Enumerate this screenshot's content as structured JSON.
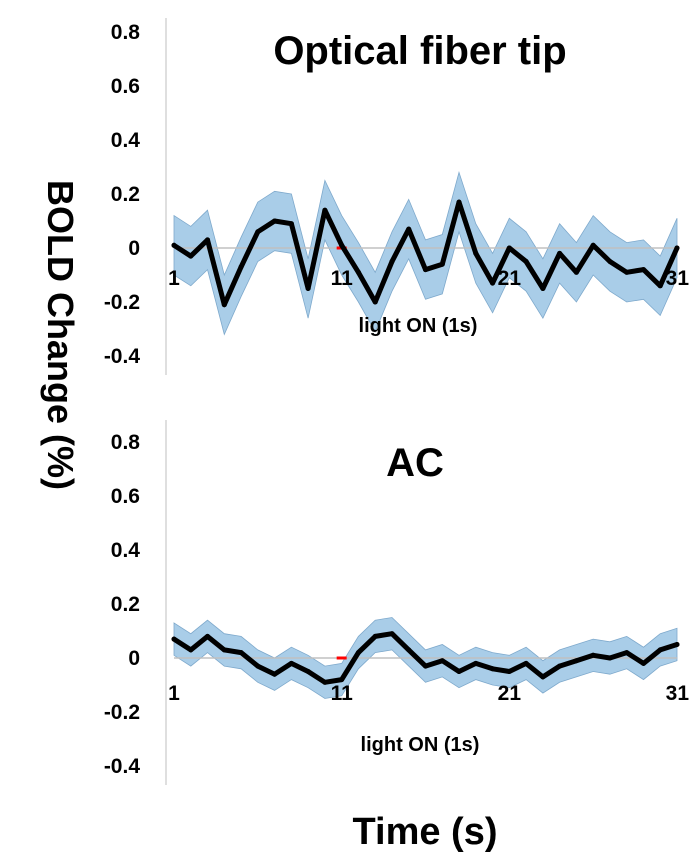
{
  "figure": {
    "ylabel": "BOLD Change (%)",
    "xlabel": "Time (s)"
  },
  "colors": {
    "line": "#000000",
    "band": "#a9cde8",
    "band_edge": "#7ea9cc",
    "zero_line": "#c0c0c0",
    "stimulus": "#ff0000",
    "axis": "#bfbfbf"
  },
  "chart_data": [
    {
      "type": "line",
      "title": "Optical fiber tip",
      "annotation": "light ON (1s)",
      "x": [
        1,
        2,
        3,
        4,
        5,
        6,
        7,
        8,
        9,
        10,
        11,
        12,
        13,
        14,
        15,
        16,
        17,
        18,
        19,
        20,
        21,
        22,
        23,
        24,
        25,
        26,
        27,
        28,
        29,
        30,
        31
      ],
      "series": [
        {
          "values": [
            0.01,
            -0.03,
            0.03,
            -0.21,
            -0.07,
            0.06,
            0.1,
            0.09,
            -0.15,
            0.14,
            0.01,
            -0.09,
            -0.2,
            -0.05,
            0.07,
            -0.08,
            -0.06,
            0.17,
            -0.02,
            -0.13,
            0.0,
            -0.05,
            -0.15,
            -0.02,
            -0.09,
            0.01,
            -0.05,
            -0.09,
            -0.08,
            -0.14,
            0.0
          ],
          "error": 0.11
        }
      ],
      "xticks": [
        "1",
        "11",
        "21",
        "31"
      ],
      "yticks": [
        "-0.4",
        "-0.2",
        "0",
        "0.2",
        "0.4",
        "0.6",
        "0.8"
      ],
      "xlim": [
        1,
        31
      ],
      "ylim": [
        -0.45,
        0.85
      ],
      "stimulus_x": 11,
      "grid": false
    },
    {
      "type": "line",
      "title": "AC",
      "annotation": "light ON (1s)",
      "x": [
        1,
        2,
        3,
        4,
        5,
        6,
        7,
        8,
        9,
        10,
        11,
        12,
        13,
        14,
        15,
        16,
        17,
        18,
        19,
        20,
        21,
        22,
        23,
        24,
        25,
        26,
        27,
        28,
        29,
        30,
        31
      ],
      "series": [
        {
          "values": [
            0.07,
            0.03,
            0.08,
            0.03,
            0.02,
            -0.03,
            -0.06,
            -0.02,
            -0.05,
            -0.09,
            -0.08,
            0.02,
            0.08,
            0.09,
            0.03,
            -0.03,
            -0.01,
            -0.05,
            -0.02,
            -0.04,
            -0.05,
            -0.02,
            -0.07,
            -0.03,
            -0.01,
            0.01,
            0.0,
            0.02,
            -0.02,
            0.03,
            0.05
          ],
          "error": 0.06
        }
      ],
      "xticks": [
        "1",
        "11",
        "21",
        "31"
      ],
      "yticks": [
        "-0.4",
        "-0.2",
        "0",
        "0.2",
        "0.4",
        "0.6",
        "0.8"
      ],
      "xlim": [
        1,
        31
      ],
      "ylim": [
        -0.45,
        0.85
      ],
      "stimulus_x": 11,
      "grid": false
    }
  ]
}
